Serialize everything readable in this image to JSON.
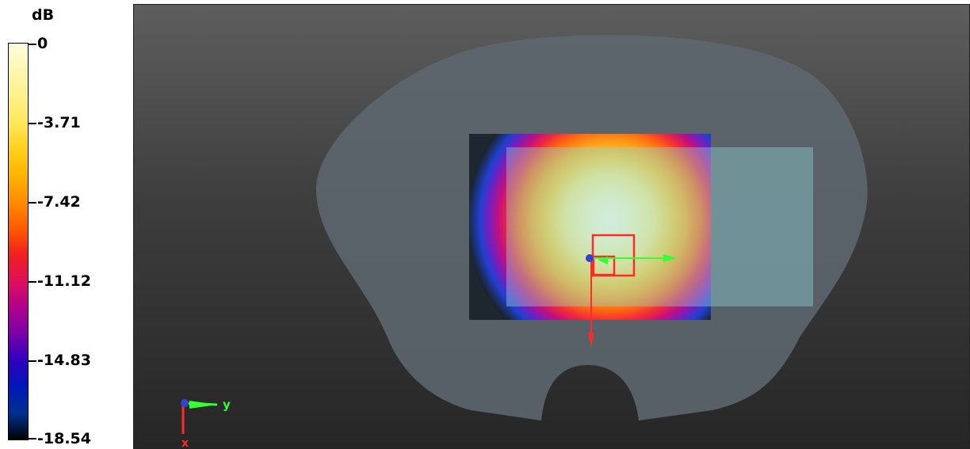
{
  "colorbar": {
    "unit": "dB",
    "labels": [
      "0",
      "-3.71",
      "-7.42",
      "-11.12",
      "-14.83",
      "-18.54"
    ]
  },
  "axes_indicator": {
    "y_label": "y",
    "x_label": "x"
  },
  "colors": {
    "background_top": "#5e5e5e",
    "background_bottom": "#262626",
    "phantom": "#5d6670",
    "probe_plate": "#8fd5d6",
    "marker_red": "#ff2a2a",
    "axis_green": "#33ff33",
    "axis_blue": "#3344cc"
  }
}
